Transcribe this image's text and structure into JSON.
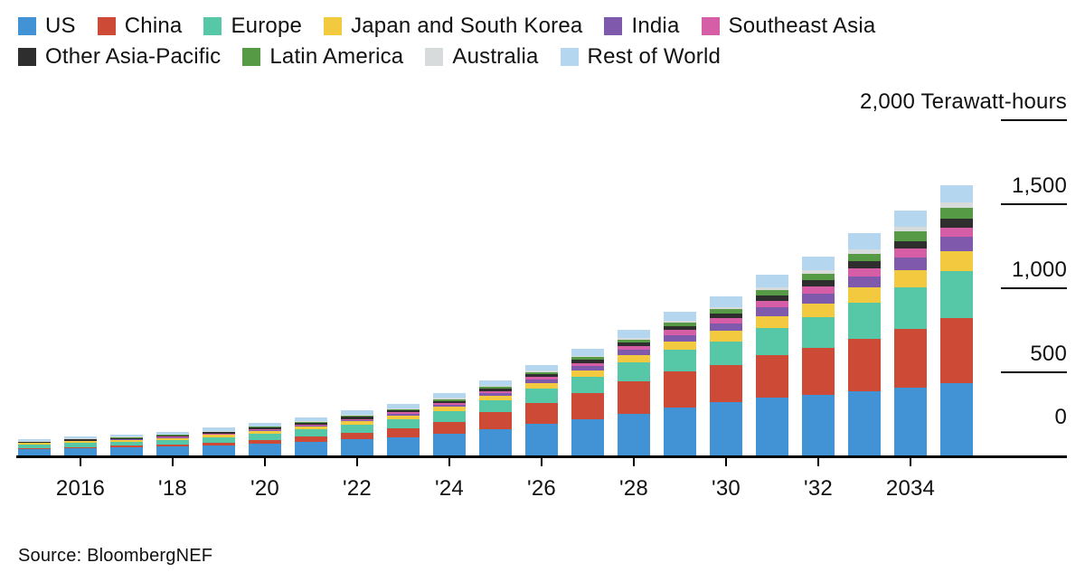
{
  "legend": {
    "rows": [
      [
        {
          "label": "US",
          "color": "#4193D5"
        },
        {
          "label": "China",
          "color": "#CC4A36"
        },
        {
          "label": "Europe",
          "color": "#57C8A7"
        },
        {
          "label": "Japan and South Korea",
          "color": "#F3C93F"
        },
        {
          "label": "India",
          "color": "#7E59AC"
        },
        {
          "label": "Southeast Asia",
          "color": "#D55EA6"
        }
      ],
      [
        {
          "label": "Other Asia-Pacific",
          "color": "#2E2E2E"
        },
        {
          "label": "Latin America",
          "color": "#579A45"
        },
        {
          "label": "Australia",
          "color": "#D8DBDB"
        },
        {
          "label": "Rest of World",
          "color": "#B4D7EF"
        }
      ]
    ]
  },
  "y_axis": {
    "ticks": [
      {
        "value": 2000,
        "label": "2,000 Terawatt-hours"
      },
      {
        "value": 1500,
        "label": "1,500"
      },
      {
        "value": 1000,
        "label": "1,000"
      },
      {
        "value": 500,
        "label": "500"
      },
      {
        "value": 0,
        "label": "0"
      }
    ]
  },
  "x_axis": {
    "ticks": [
      {
        "year": 2016,
        "label": "2016"
      },
      {
        "year": 2018,
        "label": "'18"
      },
      {
        "year": 2020,
        "label": "'20"
      },
      {
        "year": 2022,
        "label": "'22"
      },
      {
        "year": 2024,
        "label": "'24"
      },
      {
        "year": 2026,
        "label": "'26"
      },
      {
        "year": 2028,
        "label": "'28"
      },
      {
        "year": 2030,
        "label": "'30"
      },
      {
        "year": 2032,
        "label": "'32"
      },
      {
        "year": 2034,
        "label": "2034"
      }
    ]
  },
  "source": {
    "text": "Source: BloombergNEF"
  },
  "chart_data": {
    "type": "bar",
    "stacked": true,
    "unit": "Terawatt-hours",
    "ylabel": "2,000 Terawatt-hours",
    "ylim": [
      0,
      2000
    ],
    "y_tick_interval": 500,
    "grid": false,
    "legend_position": "top-left",
    "y_axis_position": "right",
    "x": [
      2015,
      2016,
      2017,
      2018,
      2019,
      2020,
      2021,
      2022,
      2023,
      2024,
      2025,
      2026,
      2027,
      2028,
      2029,
      2030,
      2031,
      2032,
      2033,
      2034,
      2035
    ],
    "series": [
      {
        "name": "US",
        "color": "#4193D5",
        "values": [
          38,
          42,
          47,
          52,
          60,
          71,
          82,
          95,
          110,
          130,
          158,
          190,
          218,
          250,
          285,
          318,
          342,
          362,
          383,
          405,
          428
        ]
      },
      {
        "name": "China",
        "color": "#CC4A36",
        "values": [
          6,
          8,
          10,
          12,
          16,
          22,
          30,
          40,
          52,
          70,
          99,
          123,
          152,
          192,
          216,
          220,
          253,
          276,
          312,
          350,
          392
        ]
      },
      {
        "name": "Europe",
        "color": "#57C8A7",
        "values": [
          21,
          24,
          26,
          29,
          33,
          38,
          43,
          49,
          52,
          62,
          72,
          85,
          97,
          110,
          126,
          142,
          163,
          186,
          213,
          244,
          278
        ]
      },
      {
        "name": "Japan and South Korea",
        "color": "#F3C93F",
        "values": [
          9,
          10,
          11,
          12,
          14,
          16,
          18,
          21,
          24,
          27,
          28,
          33,
          38,
          44,
          52,
          60,
          70,
          80,
          92,
          106,
          120
        ]
      },
      {
        "name": "India",
        "color": "#7E59AC",
        "values": [
          1,
          2,
          2,
          3,
          3,
          4,
          5,
          7,
          9,
          12,
          14,
          20,
          25,
          31,
          38,
          48,
          54,
          60,
          67,
          74,
          82
        ]
      },
      {
        "name": "Southeast Asia",
        "color": "#D55EA6",
        "values": [
          1,
          2,
          2,
          3,
          3,
          4,
          5,
          6,
          8,
          10,
          12,
          16,
          20,
          24,
          28,
          32,
          39,
          43,
          46,
          50,
          54
        ]
      },
      {
        "name": "Other Asia-Pacific",
        "color": "#2E2E2E",
        "values": [
          5,
          6,
          7,
          8,
          9,
          10,
          11,
          12,
          12,
          14,
          15,
          17,
          19,
          21,
          24,
          27,
          32,
          37,
          42,
          48,
          54
        ]
      },
      {
        "name": "Latin America",
        "color": "#579A45",
        "values": [
          2,
          2,
          3,
          3,
          4,
          5,
          6,
          7,
          8,
          10,
          11,
          13,
          15,
          17,
          19,
          22,
          29,
          37,
          45,
          55,
          65
        ]
      },
      {
        "name": "Australia",
        "color": "#D8DBDB",
        "values": [
          2,
          3,
          3,
          4,
          4,
          5,
          5,
          6,
          6,
          8,
          8,
          9,
          10,
          11,
          12,
          13,
          17,
          21,
          25,
          29,
          33
        ]
      },
      {
        "name": "Rest of World",
        "color": "#B4D7EF",
        "values": [
          10,
          11,
          14,
          16,
          19,
          21,
          23,
          25,
          26,
          29,
          30,
          34,
          38,
          46,
          55,
          66,
          74,
          83,
          95,
          99,
          101
        ]
      }
    ],
    "totals": [
      95,
      110,
      125,
      142,
      165,
      196,
      228,
      268,
      307,
      372,
      447,
      540,
      632,
      746,
      855,
      948,
      1073,
      1185,
      1320,
      1460,
      1607
    ]
  }
}
